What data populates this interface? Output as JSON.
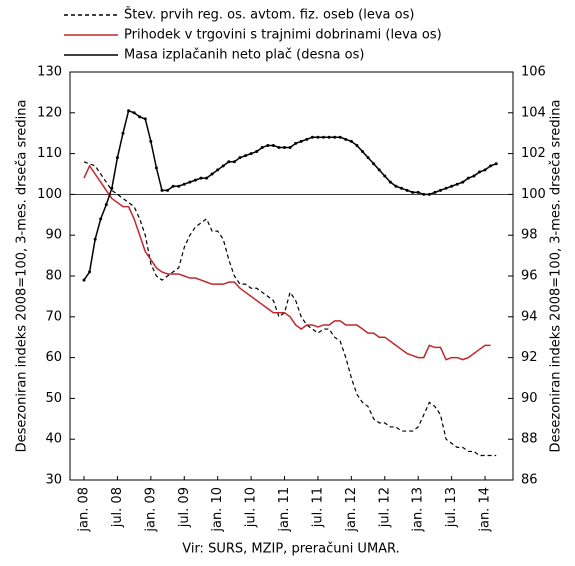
{
  "chart_data": {
    "type": "line",
    "ylabel": "Desezoniran indeks 2008=100, 3-mes. drseča sredina",
    "y2label": "Desezoniran indeks 2008=100, 3-mes. drseča sredina",
    "note": "Vir: SURS, MZIP, preračuni UMAR.",
    "categories": [
      "jan. 08",
      null,
      null,
      null,
      null,
      null,
      "jul. 08",
      null,
      null,
      null,
      null,
      null,
      "jan. 09",
      null,
      null,
      null,
      null,
      null,
      "jul. 09",
      null,
      null,
      null,
      null,
      null,
      "jan. 10",
      null,
      null,
      null,
      null,
      null,
      "jul. 10",
      null,
      null,
      null,
      null,
      null,
      "jan. 11",
      null,
      null,
      null,
      null,
      null,
      "jul. 11",
      null,
      null,
      null,
      null,
      null,
      "jan. 12",
      null,
      null,
      null,
      null,
      null,
      "jul. 12",
      null,
      null,
      null,
      null,
      null,
      "jan. 13",
      null,
      null,
      null,
      null,
      null,
      "jul. 13",
      null,
      null,
      null,
      null,
      null,
      "jan. 14",
      null,
      null
    ],
    "ylim": [
      30,
      130
    ],
    "yticks": [
      30,
      40,
      50,
      60,
      70,
      80,
      90,
      100,
      110,
      120,
      130
    ],
    "y2lim": [
      86,
      106
    ],
    "y2ticks": [
      86,
      88,
      90,
      92,
      94,
      96,
      98,
      100,
      102,
      104,
      106
    ],
    "reference_line": 100,
    "series": [
      {
        "name": "Štev. prvih reg. os. avtom. fiz. oseb (leva os)",
        "color": "#000000",
        "dash": true,
        "values": [
          108,
          107.5,
          107,
          105,
          103,
          101,
          100,
          99,
          98,
          97,
          94,
          90,
          83,
          80,
          79,
          80,
          81,
          82,
          87,
          90,
          92,
          93,
          94,
          91,
          91,
          89,
          84,
          80,
          78,
          78,
          77,
          77,
          76,
          75,
          74,
          70,
          71,
          76,
          74,
          70,
          68,
          67,
          66,
          67,
          67,
          65,
          64,
          60,
          55,
          51,
          49,
          48,
          45,
          44,
          44,
          43,
          43,
          42,
          42,
          42,
          43,
          46,
          49,
          48,
          46,
          40,
          39,
          38,
          38,
          37,
          37,
          36,
          36,
          36,
          36
        ]
      },
      {
        "name": "Prihodek v trgovini s trajnimi dobrinami (leva os)",
        "color": "#c0282d",
        "values": [
          104,
          107,
          105,
          103,
          101,
          99,
          98,
          97,
          97,
          94,
          90,
          86,
          84,
          82,
          81,
          80.5,
          80.5,
          80.5,
          80,
          79.5,
          79.5,
          79,
          78.5,
          78,
          78,
          78,
          78.5,
          78.5,
          77,
          76,
          75,
          74,
          73,
          72,
          71,
          71,
          71,
          70,
          68,
          67,
          68,
          68,
          67.5,
          68,
          68,
          69,
          69,
          68,
          68,
          68,
          67,
          66,
          66,
          65,
          65,
          64,
          63,
          62,
          61,
          60.5,
          60,
          60,
          63,
          62.5,
          62.5,
          59.5,
          60,
          60,
          59.5,
          60,
          61,
          62,
          63,
          63,
          null
        ]
      },
      {
        "name": "Masa izplačanih neto plač (desna os)",
        "color": "#000000",
        "axis": "y2",
        "markers": true,
        "values": [
          95.8,
          96.2,
          97.8,
          98.8,
          99.5,
          100.3,
          101.8,
          103.0,
          104.1,
          104.0,
          103.8,
          103.7,
          102.6,
          101.3,
          100.2,
          100.2,
          100.4,
          100.4,
          100.5,
          100.6,
          100.7,
          100.8,
          100.8,
          101.0,
          101.2,
          101.4,
          101.6,
          101.6,
          101.8,
          101.9,
          102.0,
          102.1,
          102.3,
          102.4,
          102.4,
          102.3,
          102.3,
          102.3,
          102.5,
          102.6,
          102.7,
          102.8,
          102.8,
          102.8,
          102.8,
          102.8,
          102.8,
          102.7,
          102.6,
          102.4,
          102.1,
          101.8,
          101.5,
          101.2,
          100.9,
          100.6,
          100.4,
          100.3,
          100.2,
          100.1,
          100.1,
          100.0,
          100.0,
          100.1,
          100.2,
          100.3,
          100.4,
          100.5,
          100.6,
          100.8,
          100.9,
          101.1,
          101.2,
          101.4,
          101.5
        ]
      }
    ]
  }
}
